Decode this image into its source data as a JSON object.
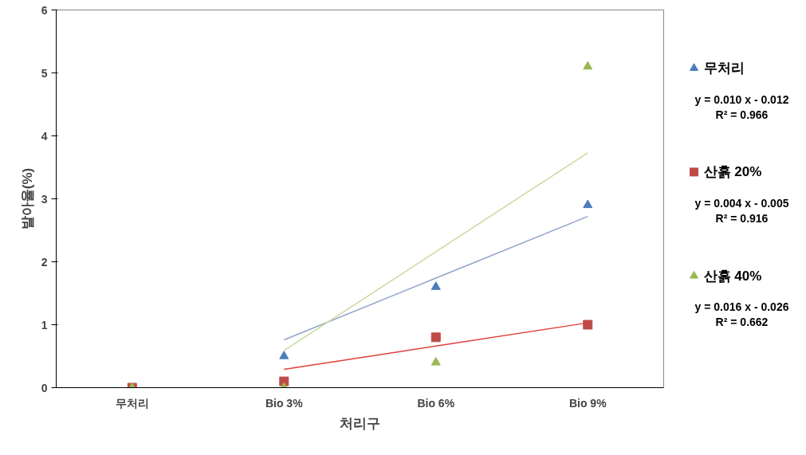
{
  "chart_data": {
    "type": "scatter",
    "xlabel": "처리구",
    "ylabel": "발아율(%)",
    "categories": [
      "무처리",
      "Bio 3%",
      "Bio 6%",
      "Bio 9%"
    ],
    "ylim": [
      0,
      6
    ],
    "yticks": [
      0,
      1,
      2,
      3,
      4,
      5,
      6
    ],
    "grid": false,
    "legend": "right",
    "series": [
      {
        "name": "무처리",
        "color": "#4a7ebb",
        "marker": "triangle",
        "values": [
          null,
          0.5,
          1.6,
          2.9
        ]
      },
      {
        "name": "산흙 20%",
        "color": "#be4b48",
        "marker": "square",
        "values": [
          0,
          0.1,
          0.8,
          1.0
        ]
      },
      {
        "name": "산흙 40%",
        "color": "#98b954",
        "marker": "triangle",
        "values": [
          0,
          0,
          0.4,
          5.1
        ]
      },
      {
        "type": "line",
        "color": "#8fa3c6",
        "values": [
          null,
          0.76,
          1.74,
          2.72
        ]
      },
      {
        "type": "line",
        "color": "#e0403a",
        "values": [
          null,
          0.29,
          0.66,
          1.03
        ]
      },
      {
        "type": "line",
        "color": "#c9d99e",
        "values": [
          null,
          0.59,
          2.16,
          3.73
        ]
      }
    ],
    "annotations": [
      "y = 0.010 x - 0.012\nR² = 0.966",
      "y = 0.004 x - 0.005\nR² = 0.916",
      "y = 0.016 x - 0.026\nR² = 0.662"
    ]
  }
}
